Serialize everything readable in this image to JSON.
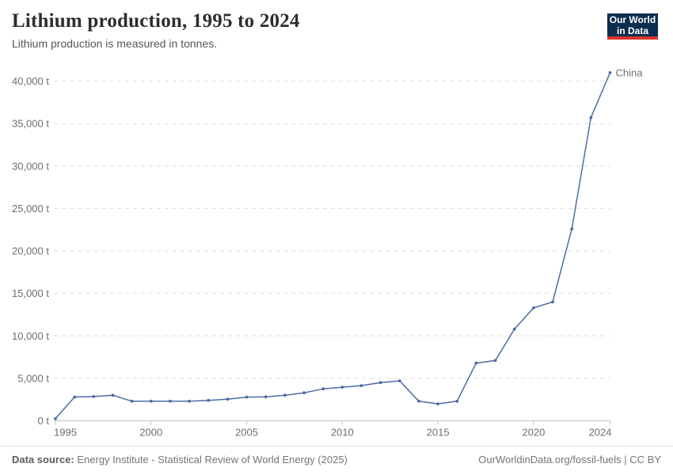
{
  "header": {
    "title": "Lithium production, 1995 to 2024",
    "subtitle": "Lithium production is measured in tonnes.",
    "logo": {
      "line1": "Our World",
      "line2": "in Data"
    }
  },
  "chart_data": {
    "type": "line",
    "title": "Lithium production, 1995 to 2024",
    "subtitle": "Lithium production is measured in tonnes.",
    "unit": "tonnes",
    "x": [
      1995,
      1996,
      1997,
      1998,
      1999,
      2000,
      2001,
      2002,
      2003,
      2004,
      2005,
      2006,
      2007,
      2008,
      2009,
      2010,
      2011,
      2012,
      2013,
      2014,
      2015,
      2016,
      2017,
      2018,
      2019,
      2020,
      2021,
      2022,
      2023,
      2024
    ],
    "series": [
      {
        "name": "China",
        "color": "#4C6BA5",
        "values": [
          250,
          2800,
          2850,
          3000,
          2300,
          2300,
          2300,
          2300,
          2400,
          2550,
          2790,
          2820,
          3010,
          3290,
          3760,
          3950,
          4140,
          4500,
          4700,
          2300,
          2000,
          2300,
          6800,
          7100,
          10800,
          13300,
          14000,
          22600,
          35700,
          41000
        ]
      }
    ],
    "xlim": [
      1995,
      2024
    ],
    "ylim": [
      0,
      40000
    ],
    "xticks": [
      1995,
      2000,
      2005,
      2010,
      2015,
      2020,
      2024
    ],
    "ytick_step": 5000,
    "ytick_suffix": " t",
    "grid": "horizontal-dashed",
    "legend": "end-of-line-label",
    "end_label": "China"
  },
  "footer": {
    "source_label": "Data source:",
    "source_text": " Energy Institute - Statistical Review of World Energy (2025)",
    "credit": "OurWorldinData.org/fossil-fuels | CC BY"
  },
  "colors": {
    "series_blue": "#4C6BA5",
    "logo_bg": "#0d2d51",
    "logo_accent": "#d8352c",
    "grid": "#dddddd",
    "axis": "#c3c3c3",
    "tick_label": "#6e6e6e"
  }
}
